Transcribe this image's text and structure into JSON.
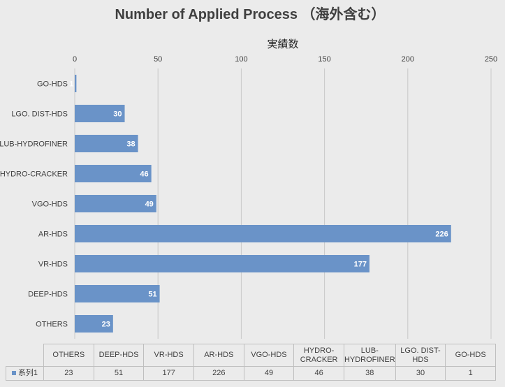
{
  "chart_data": {
    "type": "bar",
    "orientation": "horizontal",
    "title": "Number of Applied Process （海外含む）",
    "xlabel": "実績数",
    "ylabel": "",
    "xlim": [
      0,
      250
    ],
    "x_ticks": [
      0,
      50,
      100,
      150,
      200,
      250
    ],
    "x_axis_position": "top",
    "grid": true,
    "categories": [
      "OTHERS",
      "DEEP-HDS",
      "VR-HDS",
      "AR-HDS",
      "VGO-HDS",
      "HYDRO-CRACKER",
      "LUB-HYDROFINER",
      "LGO. DIST-HDS",
      "GO-HDS"
    ],
    "table_headers": [
      "OTHERS",
      "DEEP-HDS",
      "VR-HDS",
      "AR-HDS",
      "VGO-HDS",
      "HYDRO-\nCRACKER",
      "LUB-\nHYDROFINER",
      "LGO. DIST-\nHDS",
      "GO-HDS"
    ],
    "series": [
      {
        "name": "系列1",
        "values": [
          23,
          51,
          177,
          226,
          49,
          46,
          38,
          30,
          1
        ],
        "color": "#6a93c8"
      }
    ],
    "data_labels": true,
    "data_table": true
  }
}
